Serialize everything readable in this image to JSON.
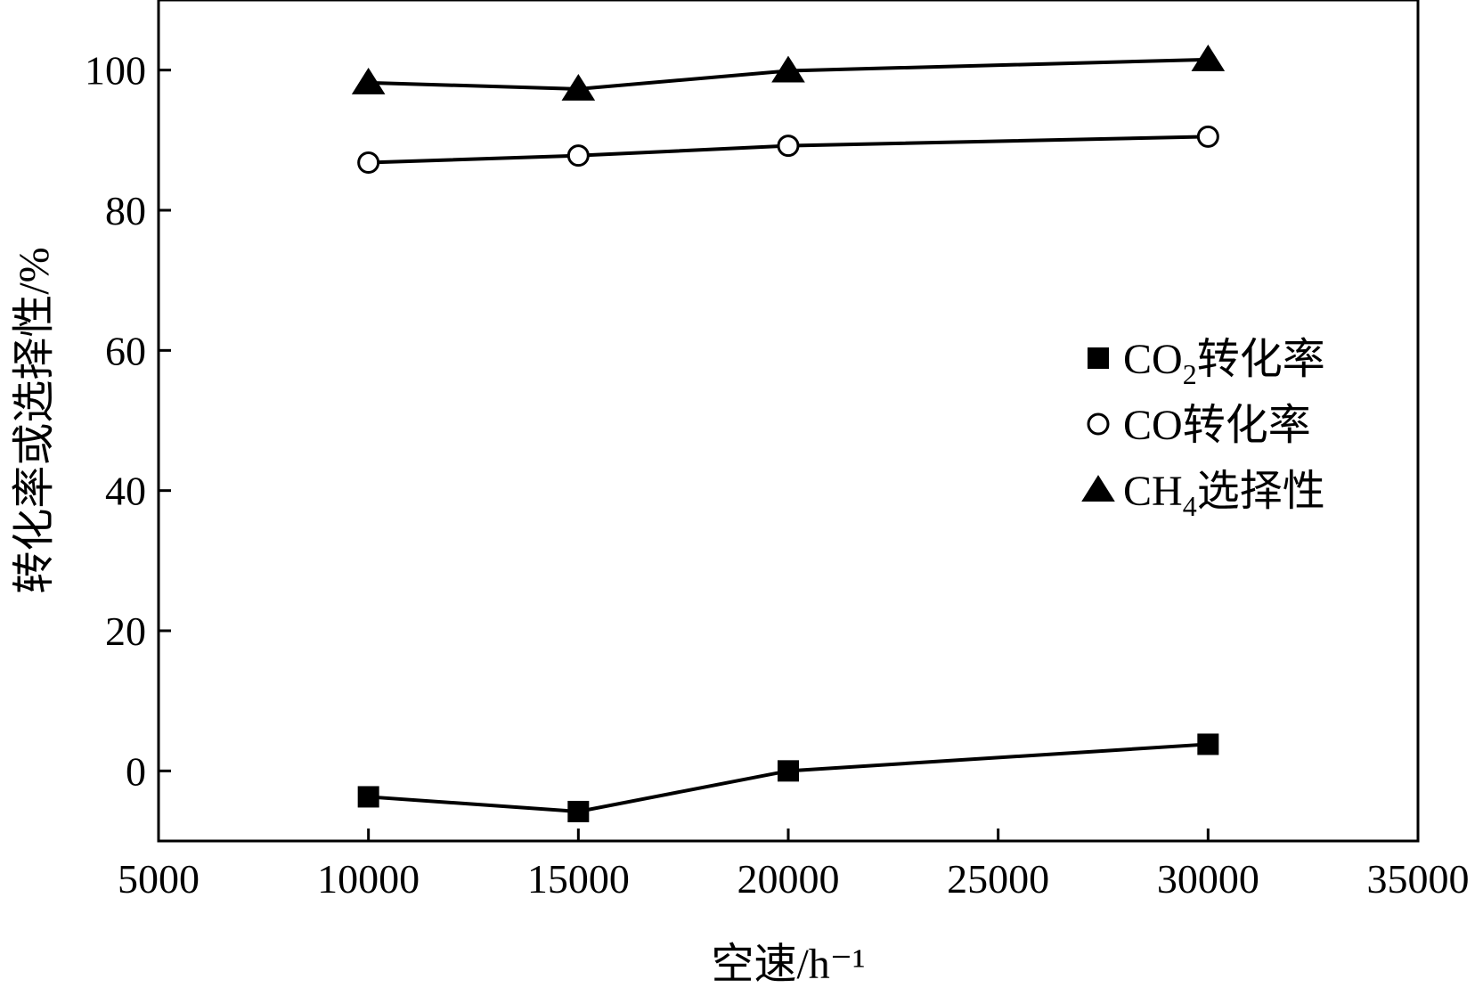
{
  "chart_data": {
    "type": "line",
    "xlabel": "空速/h⁻¹",
    "ylabel": "转化率或选择性/%",
    "xlim": [
      5000,
      35000
    ],
    "ylim": [
      -10,
      110
    ],
    "x_ticks": [
      "5000",
      "10000",
      "15000",
      "20000",
      "25000",
      "30000",
      "35000"
    ],
    "y_ticks": [
      "0",
      "20",
      "40",
      "60",
      "80",
      "100"
    ],
    "x": [
      10000,
      15000,
      20000,
      30000
    ],
    "series": [
      {
        "name_main": "CO",
        "name_sub": "2",
        "name_suffix": "转化率",
        "marker": "square",
        "values": [
          -3.7,
          -5.8,
          0.0,
          3.8
        ]
      },
      {
        "name_main": "CO",
        "name_sub": "",
        "name_suffix": "转化率",
        "marker": "circle",
        "values": [
          86.8,
          87.8,
          89.2,
          90.5
        ]
      },
      {
        "name_main": "CH",
        "name_sub": "4",
        "name_suffix": "选择性",
        "marker": "triangle",
        "values": [
          98.2,
          97.3,
          99.9,
          101.5
        ]
      }
    ],
    "grid": false,
    "legend_position": "right",
    "colors": {
      "line": "#000000",
      "marker_fill": "#000000",
      "open_marker_fill": "#ffffff"
    }
  }
}
